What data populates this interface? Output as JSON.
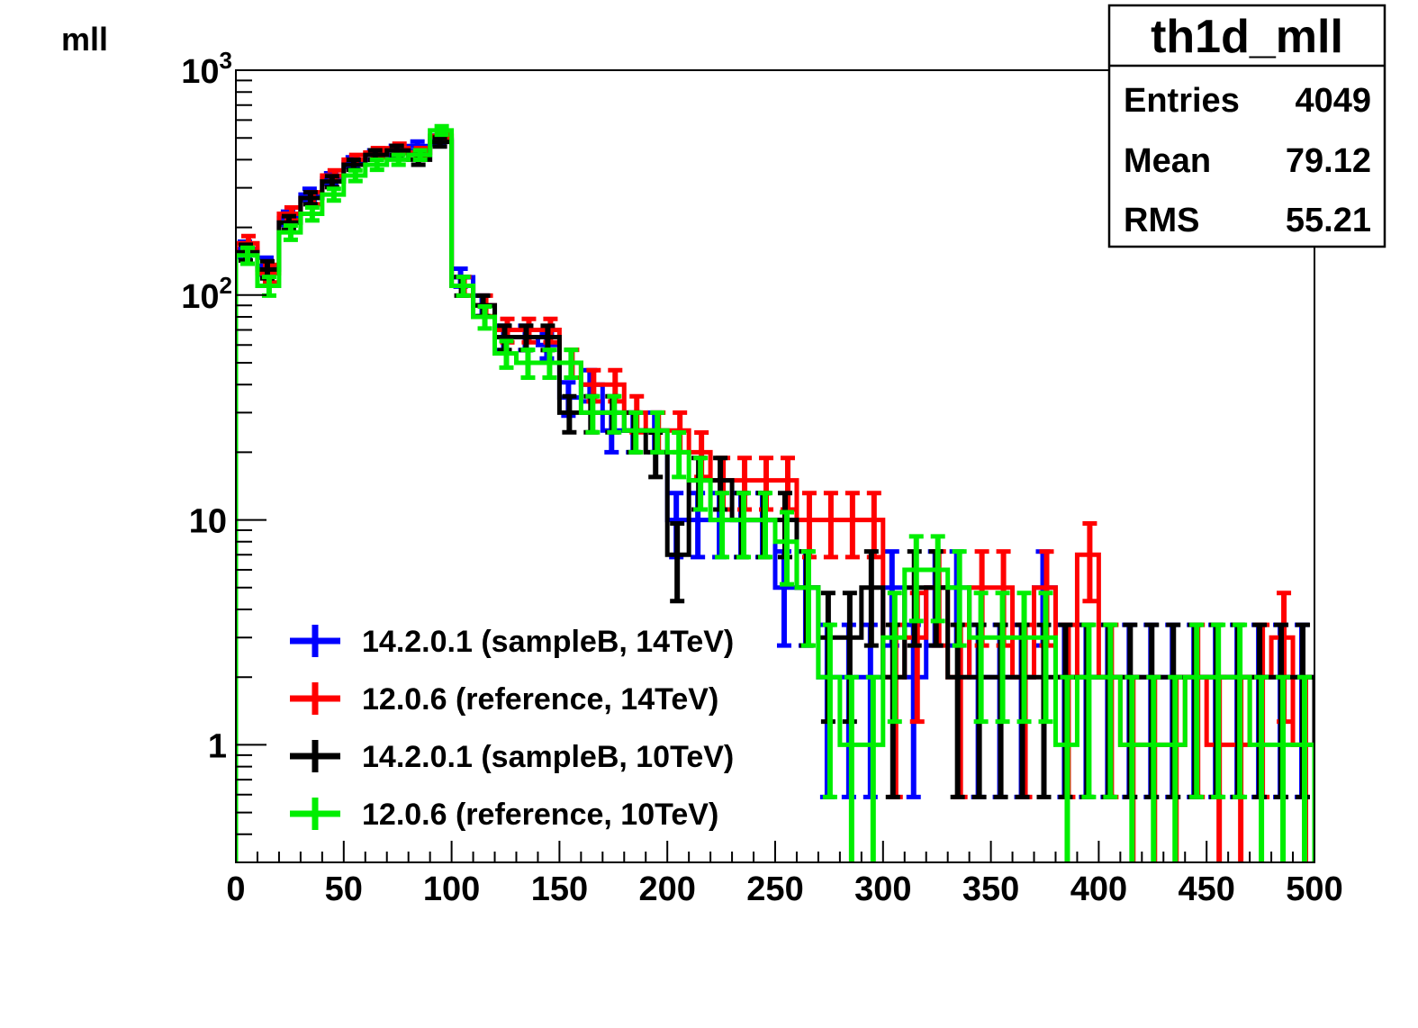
{
  "chart_data": {
    "type": "histogram",
    "title": "",
    "ylabel": "mll",
    "xlabel": "",
    "x_range": [
      0,
      500
    ],
    "y_range": [
      0.3,
      1000
    ],
    "y_scale": "log",
    "bin_width": 10,
    "grid": false,
    "x_ticks": [
      {
        "value": 0,
        "label": "0"
      },
      {
        "value": 50,
        "label": "50"
      },
      {
        "value": 100,
        "label": "100"
      },
      {
        "value": 150,
        "label": "150"
      },
      {
        "value": 200,
        "label": "200"
      },
      {
        "value": 250,
        "label": "250"
      },
      {
        "value": 300,
        "label": "300"
      },
      {
        "value": 350,
        "label": "350"
      },
      {
        "value": 400,
        "label": "400"
      },
      {
        "value": 450,
        "label": "450"
      },
      {
        "value": 500,
        "label": "500"
      }
    ],
    "y_ticks": [
      {
        "value": 1,
        "label": "1"
      },
      {
        "value": 10,
        "label": "10"
      },
      {
        "value": 100,
        "label": "10",
        "sup": "2"
      },
      {
        "value": 1000,
        "label": "10",
        "sup": "3"
      }
    ],
    "stats_box": {
      "title": "th1d_mll",
      "rows": [
        {
          "label": "Entries",
          "value": "4049"
        },
        {
          "label": "Mean",
          "value": "79.12"
        },
        {
          "label": "RMS",
          "value": "55.21"
        }
      ]
    },
    "legend_position": "bottom-left",
    "series": [
      {
        "name": "14.2.0.1 (sampleB, 14TeV)",
        "color": "#0000ff",
        "values": [
          160,
          135,
          220,
          280,
          330,
          390,
          420,
          440,
          460,
          490,
          120,
          90,
          65,
          65,
          60,
          35,
          40,
          25,
          25,
          25,
          10,
          10,
          10,
          10,
          10,
          5,
          5,
          2,
          2,
          2,
          5,
          2,
          5,
          5,
          2,
          2,
          2,
          5,
          2,
          2,
          2,
          2,
          2,
          2,
          2,
          2,
          2,
          2,
          2,
          2
        ]
      },
      {
        "name": "12.0.6 (reference, 14TeV)",
        "color": "#ff0000",
        "values": [
          170,
          125,
          230,
          270,
          340,
          400,
          430,
          450,
          430,
          510,
          110,
          90,
          70,
          70,
          70,
          50,
          40,
          40,
          30,
          25,
          25,
          20,
          15,
          15,
          15,
          15,
          10,
          10,
          10,
          10,
          2,
          3,
          5,
          2,
          5,
          5,
          2,
          5,
          2,
          7,
          2,
          1,
          1,
          1,
          2,
          1,
          1,
          2,
          3,
          1
        ]
      },
      {
        "name": "14.2.0.1 (sampleB, 10TeV)",
        "color": "#000000",
        "values": [
          155,
          130,
          210,
          270,
          320,
          380,
          420,
          440,
          400,
          480,
          110,
          90,
          65,
          65,
          65,
          30,
          30,
          30,
          25,
          20,
          7,
          15,
          15,
          10,
          10,
          10,
          5,
          3,
          3,
          5,
          2,
          5,
          5,
          2,
          2,
          2,
          2,
          2,
          2,
          2,
          2,
          2,
          2,
          2,
          2,
          2,
          2,
          2,
          2,
          2
        ]
      },
      {
        "name": "12.0.6 (reference, 10TeV)",
        "color": "#00ee00",
        "values": [
          150,
          110,
          190,
          230,
          280,
          340,
          380,
          400,
          420,
          540,
          110,
          80,
          55,
          50,
          50,
          50,
          30,
          30,
          25,
          25,
          20,
          15,
          10,
          10,
          10,
          8,
          5,
          2,
          1,
          1,
          3,
          6,
          6,
          5,
          3,
          3,
          3,
          3,
          1,
          2,
          2,
          1,
          1,
          1,
          2,
          2,
          2,
          1,
          1,
          1
        ]
      }
    ]
  }
}
